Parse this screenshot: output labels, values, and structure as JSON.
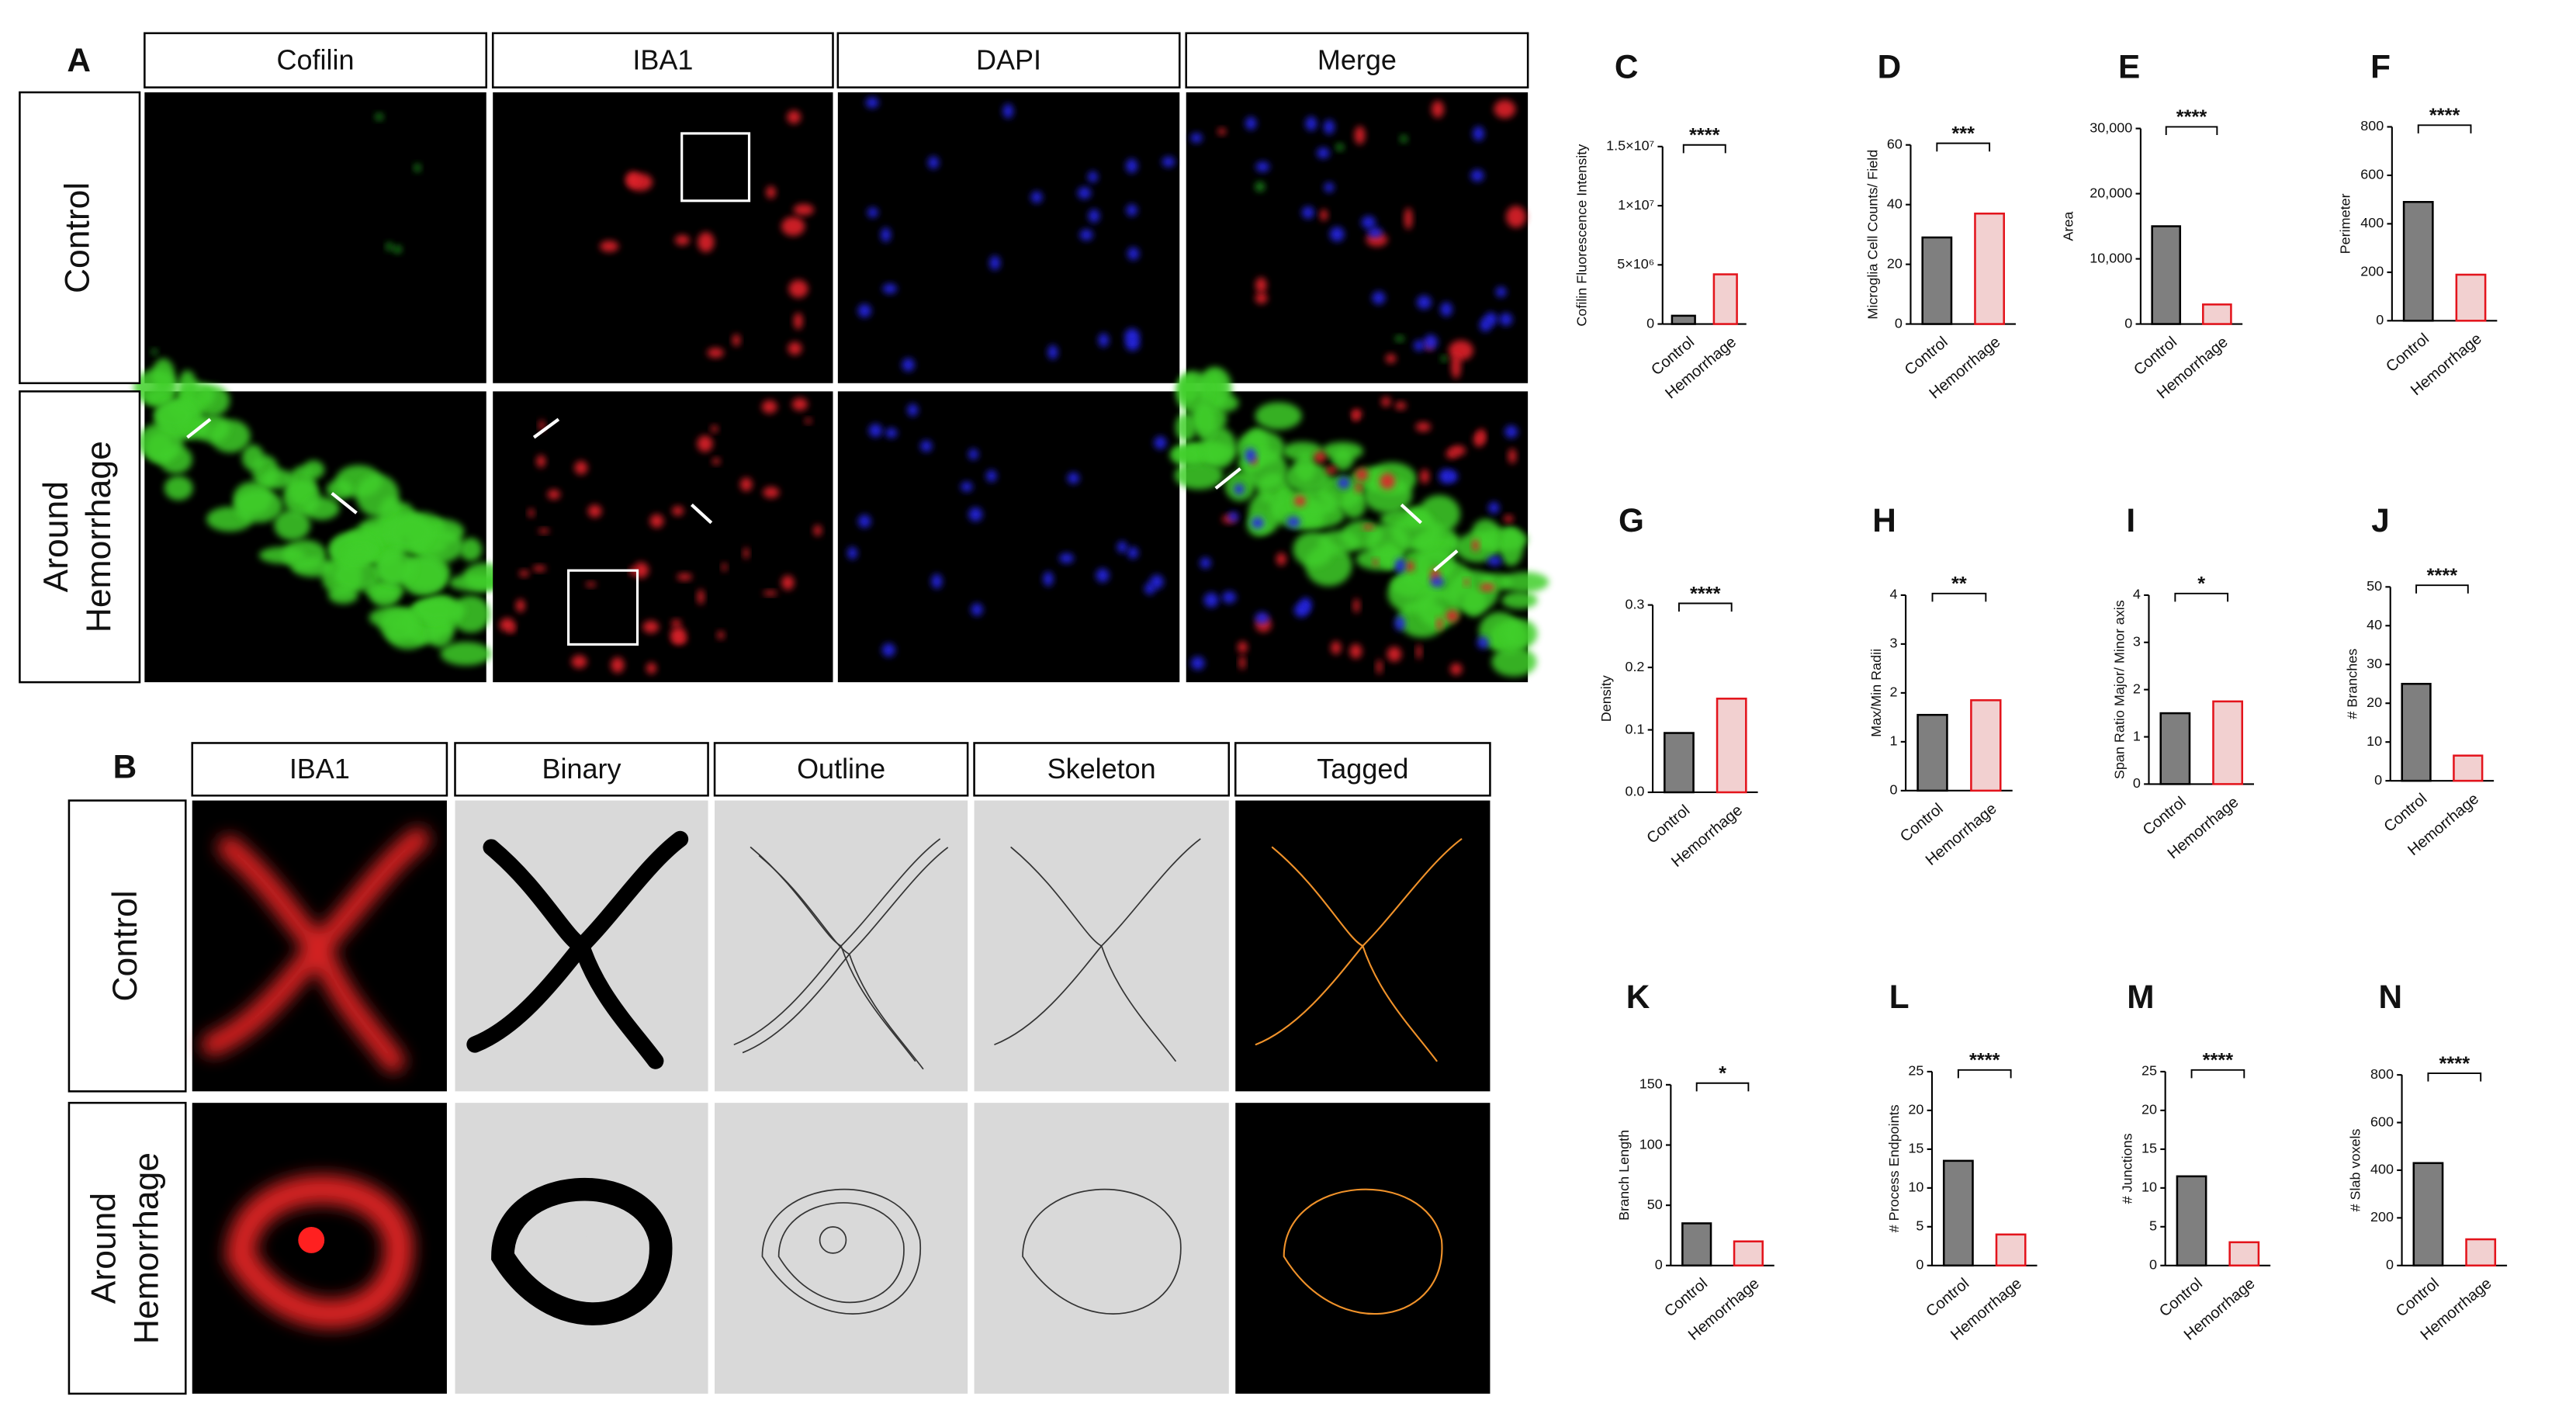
{
  "panel_a": {
    "letter": "A",
    "columns": [
      "Cofilin",
      "IBA1",
      "DAPI",
      "Merge"
    ],
    "rows": [
      [
        "Control"
      ],
      [
        "Around",
        "Hemorrhage"
      ]
    ]
  },
  "panel_b": {
    "letter": "B",
    "columns": [
      "IBA1",
      "Binary",
      "Outline",
      "Skeleton",
      "Tagged"
    ],
    "rows": [
      [
        "Control"
      ],
      [
        "Around",
        "Hemorrhage"
      ]
    ]
  },
  "chart_data": [
    {
      "type": "bar",
      "letter": "C",
      "ylabel": "Cofilin Fluorescence Intensity",
      "categories": [
        "Control",
        "Hemorrhage"
      ],
      "values": [
        700000,
        4200000
      ],
      "colors": [
        "#7f7f7f",
        "#f2d0d0"
      ],
      "edge_colors": [
        "#000000",
        "#e3141c"
      ],
      "ylim": [
        0,
        15000000
      ],
      "yticks": [
        0,
        {
          "value": 5000000,
          "label": "5×10⁶"
        },
        {
          "value": 10000000,
          "label": "1×10⁷"
        },
        {
          "value": 15000000,
          "label": "1.5×10⁷"
        }
      ],
      "annotation": "****"
    },
    {
      "type": "bar",
      "letter": "D",
      "ylabel": "Microglia Cell Counts/ Field",
      "categories": [
        "Control",
        "Hemorrhage"
      ],
      "values": [
        29,
        37
      ],
      "colors": [
        "#7f7f7f",
        "#f2d0d0"
      ],
      "edge_colors": [
        "#000000",
        "#e3141c"
      ],
      "ylim": [
        0,
        60
      ],
      "yticks": [
        0,
        20,
        40,
        60
      ],
      "annotation": "***"
    },
    {
      "type": "bar",
      "letter": "E",
      "ylabel": "Area",
      "categories": [
        "Control",
        "Hemorrhage"
      ],
      "values": [
        15000,
        3000
      ],
      "colors": [
        "#7f7f7f",
        "#f2d0d0"
      ],
      "edge_colors": [
        "#000000",
        "#e3141c"
      ],
      "ylim": [
        0,
        30000
      ],
      "yticks": [
        0,
        {
          "value": 10000,
          "label": "10,000"
        },
        {
          "value": 20000,
          "label": "20,000"
        },
        {
          "value": 30000,
          "label": "30,000"
        }
      ],
      "annotation": "****"
    },
    {
      "type": "bar",
      "letter": "F",
      "ylabel": "Perimeter",
      "categories": [
        "Control",
        "Hemorrhage"
      ],
      "values": [
        490,
        190
      ],
      "colors": [
        "#7f7f7f",
        "#f2d0d0"
      ],
      "edge_colors": [
        "#000000",
        "#e3141c"
      ],
      "ylim": [
        0,
        800
      ],
      "yticks": [
        0,
        200,
        400,
        600,
        800
      ],
      "annotation": "****"
    },
    {
      "type": "bar",
      "letter": "G",
      "ylabel": "Density",
      "categories": [
        "Control",
        "Hemorrhage"
      ],
      "values": [
        0.095,
        0.15
      ],
      "colors": [
        "#7f7f7f",
        "#f2d0d0"
      ],
      "edge_colors": [
        "#000000",
        "#e3141c"
      ],
      "ylim": [
        0,
        0.3
      ],
      "yticks": [
        {
          "value": 0,
          "label": "0.0"
        },
        0.1,
        0.2,
        0.3
      ],
      "annotation": "****"
    },
    {
      "type": "bar",
      "letter": "H",
      "ylabel": "Max/Min Radii",
      "categories": [
        "Control",
        "Hemorrhage"
      ],
      "values": [
        1.55,
        1.85
      ],
      "colors": [
        "#7f7f7f",
        "#f2d0d0"
      ],
      "edge_colors": [
        "#000000",
        "#e3141c"
      ],
      "ylim": [
        0,
        4
      ],
      "yticks": [
        0,
        1,
        2,
        3,
        4
      ],
      "annotation": "**"
    },
    {
      "type": "bar",
      "letter": "I",
      "ylabel": "Span Ratio Major/ Minor axis",
      "categories": [
        "Control",
        "Hemorrhage"
      ],
      "values": [
        1.5,
        1.75
      ],
      "colors": [
        "#7f7f7f",
        "#f2d0d0"
      ],
      "edge_colors": [
        "#000000",
        "#e3141c"
      ],
      "ylim": [
        0,
        4
      ],
      "yticks": [
        0,
        1,
        2,
        3,
        4
      ],
      "annotation": "*"
    },
    {
      "type": "bar",
      "letter": "J",
      "ylabel": "# Branches",
      "categories": [
        "Control",
        "Hemorrhage"
      ],
      "values": [
        25,
        6.5
      ],
      "colors": [
        "#7f7f7f",
        "#f2d0d0"
      ],
      "edge_colors": [
        "#000000",
        "#e3141c"
      ],
      "ylim": [
        0,
        50
      ],
      "yticks": [
        0,
        10,
        20,
        30,
        40,
        50
      ],
      "annotation": "****"
    },
    {
      "type": "bar",
      "letter": "K",
      "ylabel": "Branch Length",
      "categories": [
        "Control",
        "Hemorrhage"
      ],
      "values": [
        35,
        20
      ],
      "colors": [
        "#7f7f7f",
        "#f2d0d0"
      ],
      "edge_colors": [
        "#000000",
        "#e3141c"
      ],
      "ylim": [
        0,
        150
      ],
      "yticks": [
        0,
        50,
        100,
        150
      ],
      "annotation": "*"
    },
    {
      "type": "bar",
      "letter": "L",
      "ylabel": "# Process Endpoints",
      "categories": [
        "Control",
        "Hemorrhage"
      ],
      "values": [
        13.5,
        4
      ],
      "colors": [
        "#7f7f7f",
        "#f2d0d0"
      ],
      "edge_colors": [
        "#000000",
        "#e3141c"
      ],
      "ylim": [
        0,
        25
      ],
      "yticks": [
        0,
        5,
        10,
        15,
        20,
        25
      ],
      "annotation": "****"
    },
    {
      "type": "bar",
      "letter": "M",
      "ylabel": "# Junctions",
      "categories": [
        "Control",
        "Hemorrhage"
      ],
      "values": [
        11.5,
        3
      ],
      "colors": [
        "#7f7f7f",
        "#f2d0d0"
      ],
      "edge_colors": [
        "#000000",
        "#e3141c"
      ],
      "ylim": [
        0,
        25
      ],
      "yticks": [
        0,
        5,
        10,
        15,
        20,
        25
      ],
      "annotation": "****"
    },
    {
      "type": "bar",
      "letter": "N",
      "ylabel": "# Slab voxels",
      "categories": [
        "Control",
        "Hemorrhage"
      ],
      "values": [
        430,
        110
      ],
      "colors": [
        "#7f7f7f",
        "#f2d0d0"
      ],
      "edge_colors": [
        "#000000",
        "#e3141c"
      ],
      "ylim": [
        0,
        800
      ],
      "yticks": [
        0,
        200,
        400,
        600,
        800
      ],
      "annotation": "****"
    }
  ]
}
